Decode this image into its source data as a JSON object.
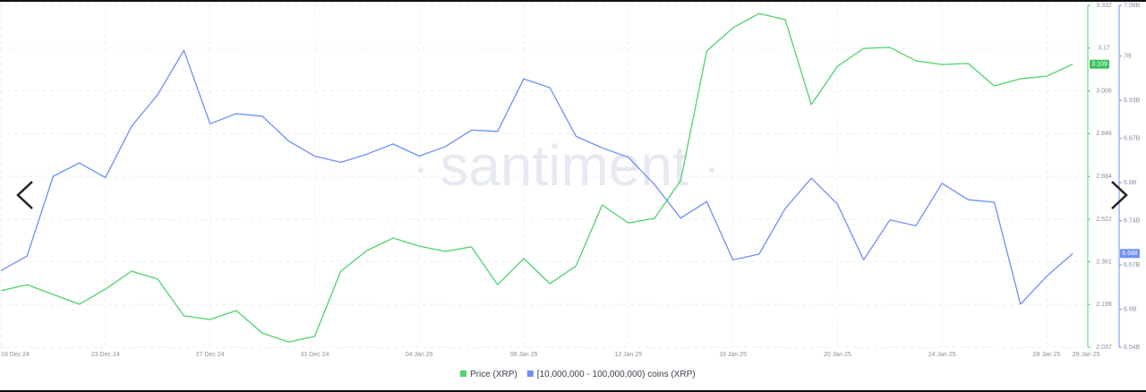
{
  "chart_data": {
    "type": "line",
    "watermark": "santiment",
    "categories": [
      "19 Dec 24",
      null,
      null,
      null,
      "23 Dec 24",
      null,
      null,
      null,
      "27 Dec 24",
      null,
      null,
      null,
      "31 Dec 24",
      null,
      null,
      null,
      "04 Jan 25",
      null,
      null,
      null,
      "08 Jan 25",
      null,
      null,
      null,
      "12 Jan 25",
      null,
      null,
      null,
      "16 Jan 25",
      null,
      null,
      null,
      "20 Jan 25",
      null,
      null,
      null,
      "24 Jan 25",
      null,
      null,
      null,
      "28 Jan 25",
      "29 Jan 25"
    ],
    "series": [
      {
        "name": "Price (XRP)",
        "color": "#4fd26b",
        "axis": "y",
        "values": [
          2.251,
          2.274,
          2.237,
          2.2,
          2.257,
          2.325,
          2.295,
          2.156,
          2.142,
          2.176,
          2.091,
          2.057,
          2.078,
          2.325,
          2.403,
          2.451,
          2.42,
          2.4,
          2.417,
          2.274,
          2.373,
          2.278,
          2.345,
          2.576,
          2.508,
          2.525,
          2.668,
          3.159,
          3.247,
          3.301,
          3.278,
          2.956,
          3.101,
          3.169,
          3.173,
          3.122,
          3.108,
          3.112,
          3.027,
          3.054,
          3.064,
          3.109
        ],
        "current_value": 3.109
      },
      {
        "name": "[10,000,000 - 100,000,000) coins (XRP)",
        "color": "#6f8ff5",
        "axis": "y2",
        "values": [
          6661000000,
          6684000000,
          6810000000,
          6831000000,
          6808000000,
          6889000000,
          6939000000,
          7009000000,
          6893000000,
          6909000000,
          6905000000,
          6866000000,
          6842000000,
          6832000000,
          6845000000,
          6861000000,
          6842000000,
          6857000000,
          6883000000,
          6881000000,
          6964000000,
          6950000000,
          6873000000,
          6855000000,
          6840000000,
          6797000000,
          6744000000,
          6770000000,
          6678000000,
          6687000000,
          6759000000,
          6807000000,
          6766000000,
          6678000000,
          6741000000,
          6732000000,
          6799000000,
          6773000000,
          6769000000,
          6608000000,
          6652000000,
          6688000000
        ],
        "current_value": {
          "value": 6688000000,
          "label": "6.688"
        }
      }
    ],
    "ylim": [
      2.037,
      3.332
    ],
    "yticks": [
      2.037,
      2.199,
      2.361,
      2.522,
      2.684,
      2.846,
      3.008,
      3.17,
      3.332
    ],
    "y2lim": [
      6540000000,
      7080000000
    ],
    "y2ticks": [
      {
        "value": 6540000000,
        "label": "6.54B"
      },
      {
        "value": 6600000000,
        "label": "6.6B"
      },
      {
        "value": 6670000000,
        "label": "6.67B"
      },
      {
        "value": 6740000000,
        "label": "6.74B"
      },
      {
        "value": 6800000000,
        "label": "6.8B"
      },
      {
        "value": 6870000000,
        "label": "6.87B"
      },
      {
        "value": 6930000000,
        "label": "6.93B"
      },
      {
        "value": 7000000000,
        "label": "7B"
      },
      {
        "value": 7080000000,
        "label": "7.08B"
      }
    ],
    "grid": true,
    "legend": "bottom"
  }
}
